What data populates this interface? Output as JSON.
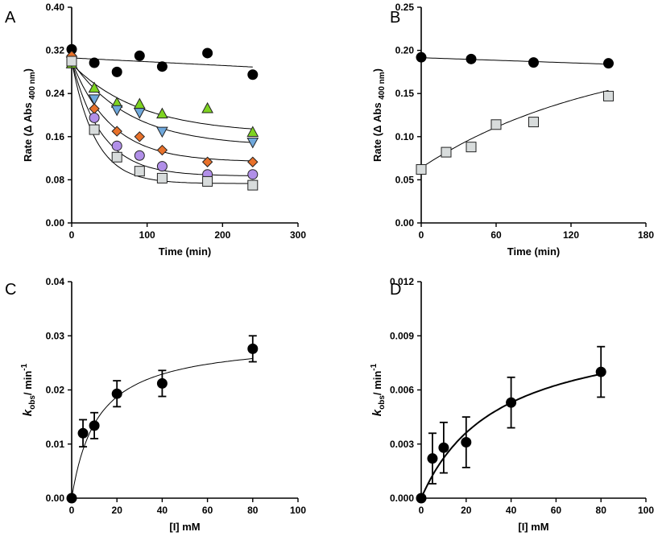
{
  "figure": {
    "panel_labels": [
      "A",
      "B",
      "C",
      "D"
    ]
  },
  "chart_data": [
    {
      "panel": "A",
      "type": "scatter",
      "xlabel": "Time (min)",
      "ylabel_main": "Rate (Δ Abs",
      "ylabel_sub": "400 nm",
      "ylabel_close": ")",
      "xlim": [
        0,
        300
      ],
      "ylim": [
        0,
        0.4
      ],
      "xticks": [
        0,
        100,
        200,
        300
      ],
      "yticks": [
        0.0,
        0.08,
        0.16,
        0.24,
        0.32,
        0.4
      ],
      "ytick_labels": [
        "0.00",
        "0.08",
        "0.16",
        "0.24",
        "0.32",
        "0.40"
      ],
      "xtick_labels": [
        "0",
        "100",
        "200",
        "300"
      ],
      "series": [
        {
          "name": "black circles",
          "marker": "circle",
          "color": "#000000",
          "x": [
            0,
            30,
            60,
            90,
            120,
            180,
            240
          ],
          "y": [
            0.322,
            0.297,
            0.28,
            0.31,
            0.29,
            0.315,
            0.275
          ],
          "fit": {
            "model": "linear",
            "a": 0.306,
            "b": -7e-05
          }
        },
        {
          "name": "green triangles",
          "marker": "triangle-up",
          "color": "#7ed321",
          "x": [
            0,
            30,
            60,
            90,
            120,
            180,
            240
          ],
          "y": [
            0.295,
            0.25,
            0.222,
            0.22,
            0.202,
            0.212,
            0.168
          ],
          "fit": {
            "model": "exp",
            "inf": 0.165,
            "amp": 0.13,
            "k": 0.011
          }
        },
        {
          "name": "blue triangles",
          "marker": "triangle-down",
          "color": "#6fa8dc",
          "x": [
            0,
            30,
            60,
            90,
            120,
            240
          ],
          "y": [
            0.3,
            0.23,
            0.21,
            0.205,
            0.17,
            0.15
          ],
          "fit": {
            "model": "exp",
            "inf": 0.142,
            "amp": 0.158,
            "k": 0.013
          }
        },
        {
          "name": "orange diamonds",
          "marker": "diamond",
          "color": "#e8712a",
          "x": [
            0,
            30,
            60,
            90,
            120,
            180,
            240
          ],
          "y": [
            0.31,
            0.212,
            0.17,
            0.16,
            0.135,
            0.113,
            0.113
          ],
          "fit": {
            "model": "exp",
            "inf": 0.113,
            "amp": 0.187,
            "k": 0.019
          }
        },
        {
          "name": "purple circles",
          "marker": "circle",
          "color": "#b18fe8",
          "x": [
            0,
            30,
            60,
            90,
            120,
            180,
            240
          ],
          "y": [
            0.3,
            0.195,
            0.143,
            0.125,
            0.105,
            0.09,
            0.09
          ],
          "fit": {
            "model": "exp",
            "inf": 0.087,
            "amp": 0.213,
            "k": 0.025
          }
        },
        {
          "name": "grey squares",
          "marker": "square",
          "color": "#d8dcdc",
          "x": [
            0,
            30,
            60,
            90,
            120,
            180,
            240
          ],
          "y": [
            0.3,
            0.173,
            0.122,
            0.096,
            0.083,
            0.077,
            0.07
          ],
          "fit": {
            "model": "exp",
            "inf": 0.073,
            "amp": 0.227,
            "k": 0.032
          }
        }
      ]
    },
    {
      "panel": "B",
      "type": "scatter",
      "xlabel": "Time (min)",
      "ylabel_main": "Rate (Δ Abs",
      "ylabel_sub": "400 nm",
      "ylabel_close": ")",
      "xlim": [
        0,
        180
      ],
      "ylim": [
        0,
        0.25
      ],
      "xticks": [
        0,
        60,
        120,
        180
      ],
      "yticks": [
        0.0,
        0.05,
        0.1,
        0.15,
        0.2,
        0.25
      ],
      "ytick_labels": [
        "0.00",
        "0.05",
        "0.10",
        "0.15",
        "0.20",
        "0.25"
      ],
      "xtick_labels": [
        "0",
        "60",
        "120",
        "180"
      ],
      "series": [
        {
          "name": "black circles",
          "marker": "circle",
          "color": "#000000",
          "x": [
            0,
            40,
            90,
            150
          ],
          "y": [
            0.192,
            0.19,
            0.186,
            0.185
          ],
          "fit": {
            "model": "linear",
            "a": 0.1915,
            "b": -5e-05
          }
        },
        {
          "name": "grey squares",
          "marker": "square",
          "color": "#d8dcdc",
          "x": [
            0,
            20,
            40,
            60,
            90,
            150
          ],
          "y": [
            0.062,
            0.082,
            0.088,
            0.114,
            0.117,
            0.147
          ],
          "fit": {
            "model": "rise",
            "y0": 0.064,
            "amp": 0.14,
            "k": 0.0068
          }
        }
      ]
    },
    {
      "panel": "C",
      "type": "scatter",
      "xlabel": "[I] mM",
      "ylabel_main": "k",
      "ylabel_sub": "obs",
      "ylabel_close": "/ min",
      "ylabel_sup": "-1",
      "xlim": [
        0,
        100
      ],
      "ylim": [
        0,
        0.04
      ],
      "xticks": [
        0,
        20,
        40,
        60,
        80,
        100
      ],
      "yticks": [
        0.0,
        0.01,
        0.02,
        0.03,
        0.04
      ],
      "ytick_labels": [
        "0.00",
        "0.01",
        "0.02",
        "0.03",
        "0.04"
      ],
      "xtick_labels": [
        "0",
        "20",
        "40",
        "60",
        "80",
        "100"
      ],
      "series": [
        {
          "name": "kobs",
          "marker": "circle",
          "color": "#000000",
          "x": [
            0,
            5,
            10,
            20,
            40,
            80
          ],
          "y": [
            0.0,
            0.012,
            0.0134,
            0.0193,
            0.0212,
            0.0276
          ],
          "err": [
            0,
            0.0025,
            0.0024,
            0.0024,
            0.0024,
            0.0024
          ],
          "fit": {
            "model": "hyperbolic",
            "vmax": 0.0295,
            "km": 11.5
          }
        }
      ]
    },
    {
      "panel": "D",
      "type": "scatter",
      "xlabel": "[I] mM",
      "ylabel_main": "k",
      "ylabel_sub": "obs",
      "ylabel_close": "/ min",
      "ylabel_sup": "-1",
      "xlim": [
        0,
        100
      ],
      "ylim": [
        0,
        0.012
      ],
      "xticks": [
        0,
        20,
        40,
        60,
        80,
        100
      ],
      "yticks": [
        0.0,
        0.003,
        0.006,
        0.009,
        0.012
      ],
      "ytick_labels": [
        "0.000",
        "0.003",
        "0.006",
        "0.009",
        "0.012"
      ],
      "xtick_labels": [
        "0",
        "20",
        "40",
        "60",
        "80",
        "100"
      ],
      "series": [
        {
          "name": "kobs",
          "marker": "circle",
          "color": "#000000",
          "x": [
            0,
            5,
            10,
            20,
            40,
            80
          ],
          "y": [
            0.0,
            0.0022,
            0.0028,
            0.0031,
            0.0053,
            0.007
          ],
          "err": [
            0,
            0.0014,
            0.0014,
            0.0014,
            0.0014,
            0.0014
          ],
          "fit": {
            "model": "hyperbolic",
            "vmax": 0.0098,
            "km": 34
          }
        }
      ]
    }
  ]
}
